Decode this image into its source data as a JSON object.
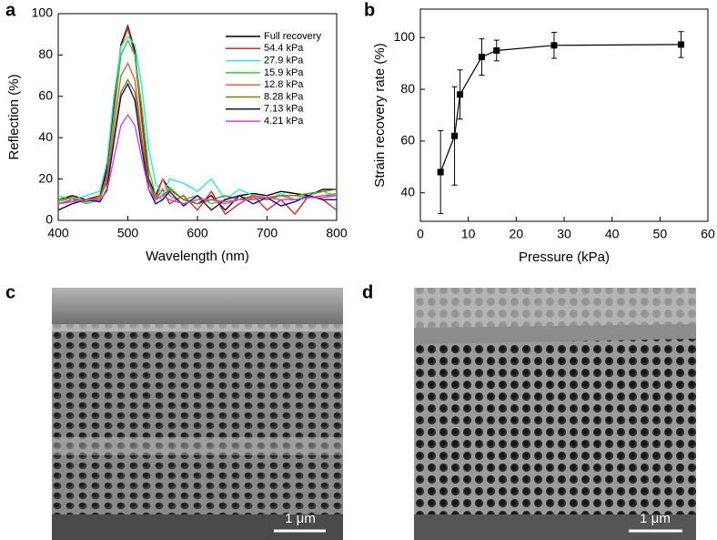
{
  "chart_data": [
    {
      "type": "line",
      "panel": "a",
      "x_label": "Wavelength (nm)",
      "y_label": "Reflection (%)",
      "x": [
        400,
        420,
        440,
        460,
        470,
        480,
        490,
        500,
        510,
        520,
        530,
        540,
        550,
        560,
        580,
        600,
        620,
        640,
        660,
        680,
        700,
        720,
        740,
        760,
        780,
        800
      ],
      "series": [
        {
          "name": "Full recovery",
          "color": "#000000",
          "values": [
            10,
            12,
            10,
            12,
            25,
            55,
            85,
            94,
            82,
            50,
            20,
            12,
            20,
            15,
            10,
            8,
            12,
            5,
            12,
            13,
            12,
            14,
            13,
            12,
            15,
            15
          ]
        },
        {
          "name": "54.4 kPa",
          "color": "#e8241c",
          "values": [
            8,
            10,
            9,
            11,
            22,
            52,
            84,
            93,
            80,
            48,
            18,
            10,
            15,
            8,
            12,
            5,
            14,
            3,
            8,
            12,
            5,
            10,
            3,
            12,
            10,
            5
          ]
        },
        {
          "name": "27.9 kPa",
          "color": "#2ee6e6",
          "values": [
            12,
            10,
            12,
            14,
            28,
            60,
            84,
            89,
            85,
            65,
            35,
            18,
            12,
            20,
            18,
            14,
            20,
            10,
            15,
            12,
            10,
            13,
            10,
            12,
            14,
            12
          ]
        },
        {
          "name": "15.9 kPa",
          "color": "#2fd12f",
          "values": [
            9,
            11,
            8,
            10,
            20,
            50,
            80,
            87,
            80,
            55,
            25,
            12,
            10,
            16,
            10,
            12,
            8,
            10,
            12,
            10,
            11,
            12,
            12,
            11,
            12,
            13
          ]
        },
        {
          "name": "12.8 kPa",
          "color": "#e8603c",
          "values": [
            8,
            9,
            10,
            11,
            20,
            45,
            70,
            76,
            68,
            40,
            15,
            10,
            20,
            12,
            8,
            10,
            10,
            8,
            10,
            11,
            10,
            12,
            10,
            11,
            12,
            12
          ]
        },
        {
          "name": "8.28 kPa",
          "color": "#7f7f00",
          "values": [
            10,
            11,
            9,
            12,
            18,
            40,
            62,
            68,
            62,
            40,
            18,
            10,
            12,
            15,
            10,
            8,
            10,
            12,
            10,
            12,
            11,
            12,
            12,
            13,
            14,
            15
          ]
        },
        {
          "name": "7.13 kPa",
          "color": "#10107f",
          "values": [
            5,
            8,
            10,
            9,
            15,
            38,
            60,
            66,
            58,
            35,
            15,
            8,
            10,
            14,
            7,
            12,
            5,
            10,
            12,
            8,
            11,
            7,
            9,
            12,
            10,
            10
          ]
        },
        {
          "name": "4.21 kPa",
          "color": "#e03ce0",
          "values": [
            8,
            9,
            10,
            10,
            14,
            30,
            46,
            51,
            46,
            30,
            15,
            10,
            12,
            10,
            8,
            10,
            10,
            9,
            10,
            10,
            11,
            10,
            10,
            11,
            11,
            12
          ]
        }
      ],
      "xlim": [
        400,
        800
      ],
      "xticks": [
        400,
        500,
        600,
        700,
        800
      ],
      "ylim": [
        0,
        100
      ],
      "yticks": [
        0,
        20,
        40,
        60,
        80,
        100
      ],
      "legend": "upper right"
    },
    {
      "type": "scatter",
      "panel": "b",
      "x_label": "Pressure (kPa)",
      "y_label": "Strain recovery rate (%)",
      "x": [
        4.21,
        7.13,
        8.28,
        12.8,
        15.9,
        27.9,
        54.4
      ],
      "values": [
        48,
        62,
        78,
        92.5,
        95,
        97,
        97.3
      ],
      "errors": [
        16,
        19,
        9.5,
        7,
        4,
        5,
        5
      ],
      "color": "#000000",
      "marker": "square",
      "connected": true,
      "xlim": [
        0,
        60
      ],
      "xticks": [
        0,
        10,
        20,
        30,
        40,
        50,
        60
      ],
      "ylim": [
        29,
        111
      ],
      "yticks": [
        40,
        60,
        80,
        100
      ]
    }
  ],
  "images": [
    {
      "panel": "c",
      "scale_bar": "1 μm"
    },
    {
      "panel": "d",
      "scale_bar": "1 μm"
    }
  ]
}
